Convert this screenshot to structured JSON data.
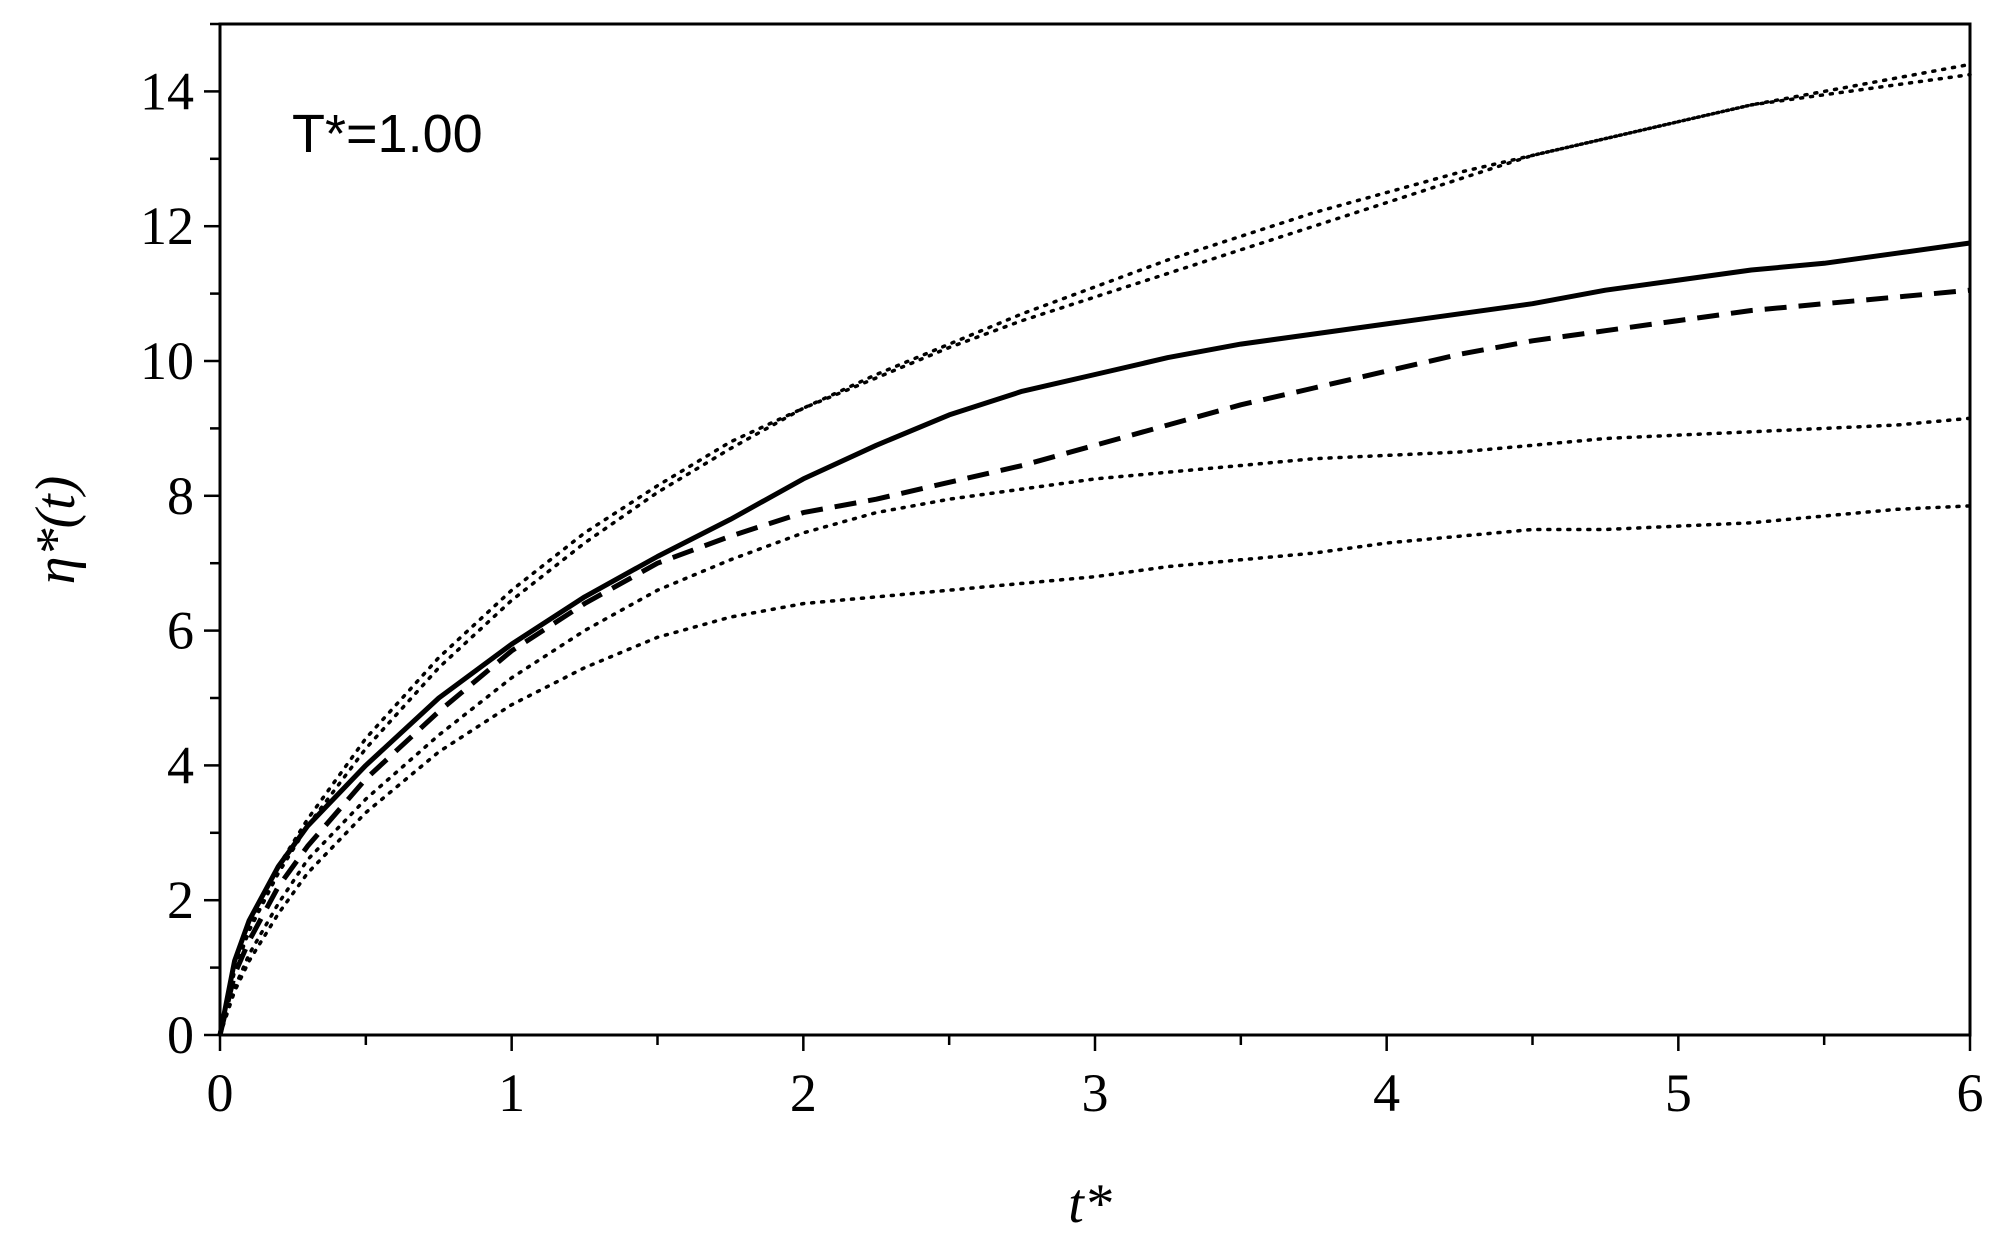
{
  "chart_data": {
    "type": "line",
    "annotation": "T*=1.00",
    "xlabel": "t*",
    "ylabel": "η*(t)",
    "xlim": [
      0,
      6
    ],
    "ylim": [
      0,
      15
    ],
    "xticks": [
      "0",
      "1",
      "2",
      "3",
      "4",
      "5",
      "6"
    ],
    "yticks": [
      "0",
      "2",
      "4",
      "6",
      "8",
      "10",
      "12",
      "14"
    ],
    "grid": false,
    "legend": "none",
    "series": [
      {
        "style": "solid",
        "x": [
          0,
          0.05,
          0.1,
          0.2,
          0.3,
          0.5,
          0.75,
          1.0,
          1.25,
          1.5,
          1.75,
          2.0,
          2.25,
          2.5,
          2.75,
          3.0,
          3.25,
          3.5,
          3.75,
          4.0,
          4.25,
          4.5,
          4.75,
          5.0,
          5.25,
          5.5,
          5.75,
          6.0
        ],
        "y": [
          0,
          1.1,
          1.7,
          2.5,
          3.1,
          4.0,
          5.0,
          5.8,
          6.5,
          7.1,
          7.65,
          8.25,
          8.75,
          9.2,
          9.55,
          9.8,
          10.05,
          10.25,
          10.4,
          10.55,
          10.7,
          10.85,
          11.05,
          11.2,
          11.35,
          11.45,
          11.6,
          11.75
        ]
      },
      {
        "style": "dashed",
        "x": [
          0,
          0.05,
          0.1,
          0.2,
          0.3,
          0.5,
          0.75,
          1.0,
          1.25,
          1.5,
          1.75,
          2.0,
          2.25,
          2.5,
          2.75,
          3.0,
          3.25,
          3.5,
          3.75,
          4.0,
          4.25,
          4.5,
          4.75,
          5.0,
          5.25,
          5.5,
          5.75,
          6.0
        ],
        "y": [
          0,
          0.9,
          1.4,
          2.2,
          2.8,
          3.8,
          4.8,
          5.7,
          6.4,
          7.0,
          7.4,
          7.75,
          7.95,
          8.2,
          8.45,
          8.75,
          9.05,
          9.35,
          9.6,
          9.85,
          10.1,
          10.3,
          10.45,
          10.6,
          10.75,
          10.85,
          10.95,
          11.05
        ]
      },
      {
        "style": "dotted",
        "x": [
          0,
          0.05,
          0.1,
          0.2,
          0.3,
          0.5,
          0.75,
          1.0,
          1.25,
          1.5,
          1.75,
          2.0,
          2.25,
          2.5,
          2.75,
          3.0,
          3.25,
          3.5,
          3.75,
          4.0,
          4.25,
          4.5,
          4.75,
          5.0,
          5.25,
          5.5,
          5.75,
          6.0
        ],
        "y": [
          0,
          1.0,
          1.6,
          2.5,
          3.2,
          4.4,
          5.6,
          6.6,
          7.45,
          8.15,
          8.8,
          9.3,
          9.8,
          10.25,
          10.7,
          11.1,
          11.5,
          11.85,
          12.2,
          12.5,
          12.8,
          13.05,
          13.3,
          13.55,
          13.8,
          14.0,
          14.2,
          14.4
        ]
      },
      {
        "style": "dotted",
        "x": [
          0,
          0.05,
          0.1,
          0.2,
          0.3,
          0.5,
          0.75,
          1.0,
          1.25,
          1.5,
          1.75,
          2.0,
          2.25,
          2.5,
          2.75,
          3.0,
          3.25,
          3.5,
          3.75,
          4.0,
          4.25,
          4.5,
          4.75,
          5.0,
          5.25,
          5.5,
          5.75,
          6.0
        ],
        "y": [
          0,
          0.95,
          1.55,
          2.4,
          3.1,
          4.25,
          5.45,
          6.45,
          7.3,
          8.05,
          8.7,
          9.3,
          9.75,
          10.2,
          10.6,
          10.95,
          11.3,
          11.65,
          12.0,
          12.35,
          12.7,
          13.05,
          13.3,
          13.55,
          13.8,
          13.95,
          14.1,
          14.25
        ]
      },
      {
        "style": "dotted",
        "x": [
          0,
          0.05,
          0.1,
          0.2,
          0.3,
          0.5,
          0.75,
          1.0,
          1.25,
          1.5,
          1.75,
          2.0,
          2.25,
          2.5,
          2.75,
          3.0,
          3.25,
          3.5,
          3.75,
          4.0,
          4.25,
          4.5,
          4.75,
          5.0,
          5.25,
          5.5,
          5.75,
          6.0
        ],
        "y": [
          0,
          0.7,
          1.2,
          1.95,
          2.6,
          3.5,
          4.45,
          5.3,
          6.0,
          6.6,
          7.05,
          7.45,
          7.75,
          7.95,
          8.1,
          8.25,
          8.35,
          8.45,
          8.55,
          8.6,
          8.65,
          8.75,
          8.85,
          8.9,
          8.95,
          9.0,
          9.05,
          9.15
        ]
      },
      {
        "style": "dotted",
        "x": [
          0,
          0.05,
          0.1,
          0.2,
          0.3,
          0.5,
          0.75,
          1.0,
          1.25,
          1.5,
          1.75,
          2.0,
          2.25,
          2.5,
          2.75,
          3.0,
          3.25,
          3.5,
          3.75,
          4.0,
          4.25,
          4.5,
          4.75,
          5.0,
          5.25,
          5.5,
          5.75,
          6.0
        ],
        "y": [
          0,
          0.65,
          1.1,
          1.8,
          2.4,
          3.3,
          4.2,
          4.9,
          5.45,
          5.9,
          6.2,
          6.4,
          6.5,
          6.6,
          6.7,
          6.8,
          6.95,
          7.05,
          7.15,
          7.3,
          7.4,
          7.5,
          7.5,
          7.55,
          7.6,
          7.7,
          7.8,
          7.85
        ]
      }
    ],
    "colors": {
      "line": "#000000",
      "background": "#ffffff"
    }
  }
}
